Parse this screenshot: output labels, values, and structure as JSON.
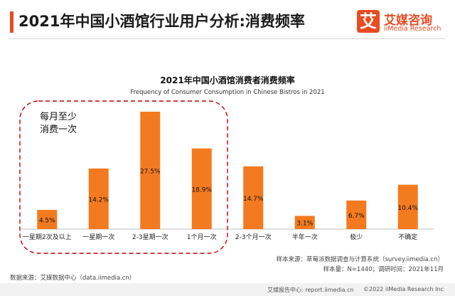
{
  "header": {
    "title": "2021年中国小酒馆行业用户分析:消费频率",
    "logo": {
      "mark": "艾",
      "cn": "艾媒咨询",
      "en": "iiMedia Research"
    }
  },
  "annotation": {
    "line1": "每月至少",
    "line2": "消费一次"
  },
  "colors": {
    "bar": "#f47a20",
    "accent": "#e84c22",
    "dashed_box": "#c00000",
    "axis": "#bfbfbf"
  },
  "chart_data": {
    "type": "bar",
    "title": "2021年中国小酒馆消费者消费频率",
    "subtitle": "Frequency of Consumer Consumption in Chinese Bistros in 2021",
    "categories": [
      "一星期2次及以上",
      "一星期一次",
      "2-3星期一次",
      "1个月一次",
      "2-3个月一次",
      "半年一次",
      "极少",
      "不确定"
    ],
    "values": [
      4.5,
      14.2,
      27.5,
      18.9,
      14.7,
      3.1,
      6.7,
      10.4
    ],
    "labels": [
      "4.5%",
      "14.2%",
      "27.5%",
      "18.9%",
      "14.7%",
      "3.1%",
      "6.7%",
      "10.4%"
    ],
    "unit": "%",
    "ylim": [
      0,
      28
    ],
    "grid": false,
    "legend": "none",
    "highlight": {
      "from": 0,
      "to": 3
    }
  },
  "footer": {
    "sample_source": "样本来源：草莓派数据调查与计算系统（survey.iimedia.cn）",
    "sample_size": "样本量：N=1440；调研时间：2021年11月",
    "data_source": "数据来源：艾媒数据中心（data.iimedia.cn）",
    "report_center": "艾媒报告中心: report.iimedia.cn",
    "copyright": "©2022  iiMedia Research  Inc"
  }
}
